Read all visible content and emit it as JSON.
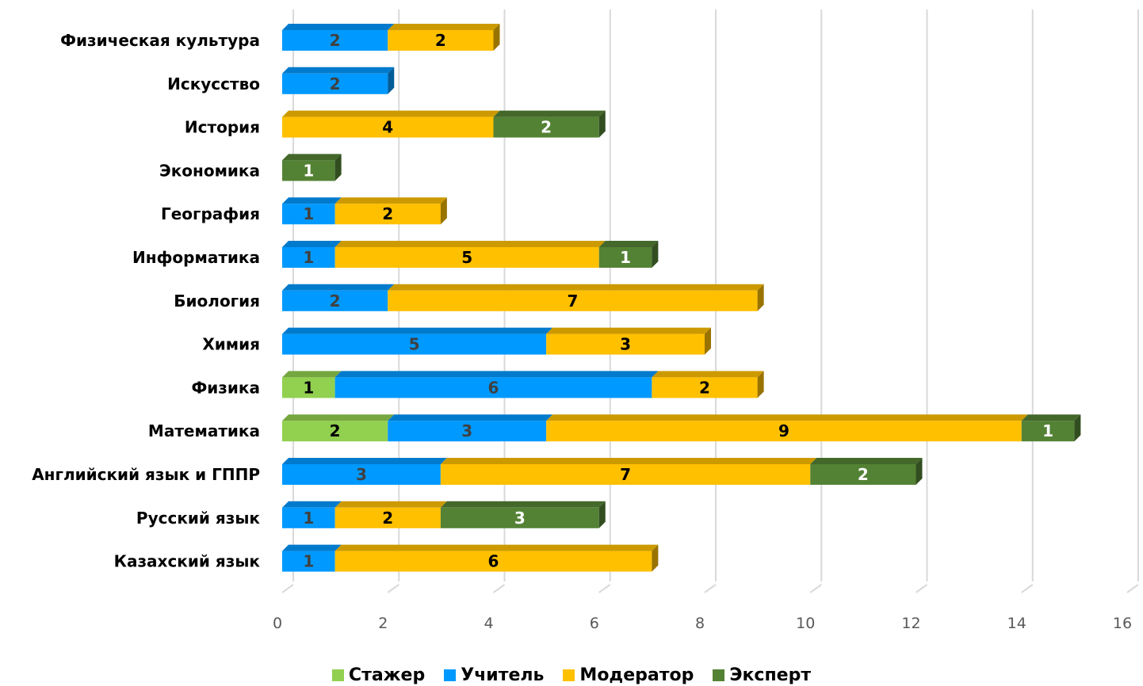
{
  "chart_data": {
    "type": "bar",
    "orientation": "horizontal",
    "stacked": true,
    "categories": [
      "Физическая культура",
      "Искусство",
      "История",
      "Экономика",
      "География",
      "Информатика",
      "Биология",
      "Химия",
      "Физика",
      "Математика",
      "Английский язык и ГППР",
      "Русский язык",
      "Казахский язык"
    ],
    "series": [
      {
        "name": "Стажер",
        "color": "#92d050",
        "label_color": "#000000",
        "values": [
          0,
          0,
          0,
          0,
          0,
          0,
          0,
          0,
          1,
          2,
          0,
          0,
          0
        ]
      },
      {
        "name": "Учитель",
        "color": "#0099ff",
        "label_color": "#404040",
        "values": [
          2,
          2,
          0,
          0,
          1,
          1,
          2,
          5,
          6,
          3,
          3,
          1,
          1
        ]
      },
      {
        "name": "Модератор",
        "color": "#ffc000",
        "label_color": "#000000",
        "values": [
          2,
          0,
          4,
          0,
          2,
          5,
          7,
          3,
          2,
          9,
          7,
          2,
          6
        ]
      },
      {
        "name": "Эксперт",
        "color": "#548235",
        "label_color": "#ffffff",
        "values": [
          0,
          0,
          2,
          1,
          0,
          1,
          0,
          0,
          0,
          1,
          2,
          3,
          0
        ]
      }
    ],
    "xlim": [
      0,
      16
    ],
    "x_ticks": [
      "0",
      "2",
      "4",
      "6",
      "8",
      "10",
      "12",
      "14",
      "16"
    ],
    "legend_position": "bottom",
    "grid": true
  }
}
